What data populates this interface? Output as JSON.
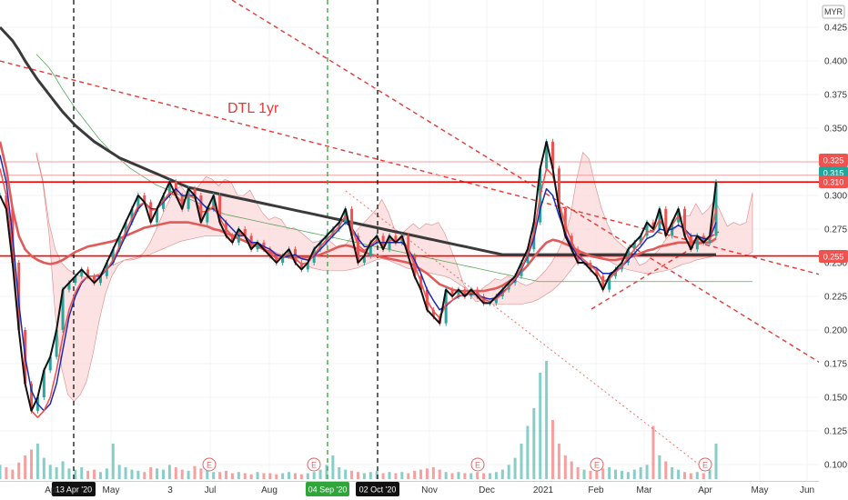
{
  "currency": "MYR",
  "annotation": "DTL 1yr",
  "colors": {
    "up": "#26a69a",
    "down": "#ef5350",
    "red_line": "#ff0000",
    "dashed_red": "#e53935",
    "long_ma": "#3a3a3a",
    "ma_red": "#e05a5a",
    "ma_blue": "#1a2bb0",
    "close_line": "#111111",
    "cloud_red": "#fbd6d6",
    "cloud_green": "#d3ecd3",
    "vline_black": "#111111",
    "vline_green": "#2fa53a"
  },
  "chart_data": {
    "type": "line",
    "x_axis_labels": [
      "Apr",
      "May",
      "Jul",
      "Aug",
      "Nov",
      "Dec",
      "2021",
      "Feb",
      "Mar",
      "Apr",
      "May",
      "Jun"
    ],
    "y_ticks": [
      0.1,
      0.125,
      0.15,
      0.175,
      0.2,
      0.225,
      0.25,
      0.275,
      0.3,
      0.325,
      0.35,
      0.375,
      0.4,
      0.425
    ],
    "extra_tick": "3",
    "ylim": [
      0.09,
      0.435
    ],
    "price_badges": [
      {
        "label": "0.325",
        "value": 0.325,
        "color": "#ef5350"
      },
      {
        "label": "0.315",
        "value": 0.315,
        "color": "#26a69a"
      },
      {
        "label": "0.310",
        "value": 0.31,
        "color": "#ef5350"
      },
      {
        "label": "0.255",
        "value": 0.255,
        "color": "#ef5350"
      }
    ],
    "horizontal_levels": [
      0.31,
      0.255
    ],
    "faint_levels": [
      0.325,
      0.315
    ],
    "event_lines": [
      {
        "label": "13 Apr '20",
        "style": "black"
      },
      {
        "label": "04 Sep '20",
        "style": "green"
      },
      {
        "label": "02 Oct '20",
        "style": "black"
      }
    ],
    "earnings_marker": "E",
    "close_series": [
      0.3,
      0.29,
      0.25,
      0.2,
      0.16,
      0.14,
      0.15,
      0.17,
      0.18,
      0.2,
      0.23,
      0.235,
      0.24,
      0.245,
      0.24,
      0.235,
      0.24,
      0.25,
      0.26,
      0.27,
      0.28,
      0.29,
      0.3,
      0.295,
      0.28,
      0.29,
      0.3,
      0.31,
      0.3,
      0.29,
      0.305,
      0.3,
      0.28,
      0.29,
      0.3,
      0.28,
      0.27,
      0.265,
      0.275,
      0.27,
      0.26,
      0.265,
      0.26,
      0.255,
      0.25,
      0.255,
      0.26,
      0.25,
      0.245,
      0.25,
      0.26,
      0.265,
      0.27,
      0.275,
      0.28,
      0.29,
      0.27,
      0.25,
      0.255,
      0.265,
      0.27,
      0.26,
      0.27,
      0.265,
      0.27,
      0.255,
      0.24,
      0.23,
      0.215,
      0.21,
      0.205,
      0.23,
      0.225,
      0.23,
      0.225,
      0.23,
      0.225,
      0.22,
      0.22,
      0.225,
      0.23,
      0.235,
      0.24,
      0.25,
      0.26,
      0.28,
      0.32,
      0.34,
      0.32,
      0.29,
      0.27,
      0.26,
      0.25,
      0.25,
      0.245,
      0.24,
      0.23,
      0.24,
      0.245,
      0.25,
      0.26,
      0.265,
      0.27,
      0.28,
      0.275,
      0.29,
      0.27,
      0.28,
      0.29,
      0.27,
      0.26,
      0.27,
      0.265,
      0.27,
      0.31
    ],
    "blue_ma": [
      0.33,
      0.31,
      0.27,
      0.22,
      0.18,
      0.155,
      0.145,
      0.14,
      0.145,
      0.16,
      0.185,
      0.21,
      0.225,
      0.235,
      0.24,
      0.24,
      0.24,
      0.245,
      0.25,
      0.26,
      0.27,
      0.28,
      0.29,
      0.295,
      0.29,
      0.29,
      0.295,
      0.3,
      0.305,
      0.3,
      0.3,
      0.3,
      0.295,
      0.29,
      0.29,
      0.285,
      0.28,
      0.275,
      0.27,
      0.27,
      0.265,
      0.265,
      0.262,
      0.26,
      0.256,
      0.254,
      0.255,
      0.256,
      0.253,
      0.252,
      0.255,
      0.26,
      0.265,
      0.27,
      0.275,
      0.28,
      0.276,
      0.268,
      0.262,
      0.262,
      0.265,
      0.265,
      0.265,
      0.265,
      0.265,
      0.26,
      0.252,
      0.242,
      0.23,
      0.222,
      0.215,
      0.218,
      0.222,
      0.225,
      0.226,
      0.227,
      0.226,
      0.224,
      0.223,
      0.224,
      0.228,
      0.232,
      0.237,
      0.245,
      0.255,
      0.268,
      0.29,
      0.305,
      0.3,
      0.285,
      0.272,
      0.262,
      0.255,
      0.25,
      0.248,
      0.246,
      0.242,
      0.242,
      0.244,
      0.247,
      0.252,
      0.257,
      0.262,
      0.268,
      0.27,
      0.275,
      0.274,
      0.275,
      0.278,
      0.275,
      0.27,
      0.27,
      0.268,
      0.268,
      0.28
    ],
    "red_ma_short": [
      0.32,
      0.3,
      0.26,
      0.2,
      0.16,
      0.14,
      0.135,
      0.14,
      0.15,
      0.17,
      0.195,
      0.215,
      0.228,
      0.236,
      0.24,
      0.24,
      0.241,
      0.245,
      0.252,
      0.262,
      0.273,
      0.283,
      0.292,
      0.295,
      0.289,
      0.29,
      0.296,
      0.302,
      0.3,
      0.295,
      0.3,
      0.298,
      0.288,
      0.288,
      0.292,
      0.283,
      0.275,
      0.27,
      0.272,
      0.27,
      0.263,
      0.264,
      0.261,
      0.257,
      0.253,
      0.254,
      0.257,
      0.253,
      0.249,
      0.25,
      0.256,
      0.262,
      0.267,
      0.272,
      0.277,
      0.285,
      0.276,
      0.263,
      0.259,
      0.263,
      0.267,
      0.263,
      0.267,
      0.266,
      0.268,
      0.26,
      0.248,
      0.236,
      0.222,
      0.214,
      0.209,
      0.219,
      0.222,
      0.226,
      0.225,
      0.228,
      0.226,
      0.223,
      0.221,
      0.223,
      0.227,
      0.232,
      0.238,
      0.246,
      0.256,
      0.272,
      0.3,
      0.32,
      0.315,
      0.295,
      0.278,
      0.266,
      0.256,
      0.252,
      0.248,
      0.244,
      0.236,
      0.238,
      0.243,
      0.247,
      0.254,
      0.26,
      0.265,
      0.273,
      0.273,
      0.282,
      0.274,
      0.278,
      0.285,
      0.275,
      0.265,
      0.268,
      0.266,
      0.268,
      0.29
    ],
    "red_ma_long": [
      0.34,
      0.32,
      0.29,
      0.27,
      0.26,
      0.255,
      0.252,
      0.25,
      0.249,
      0.25,
      0.252,
      0.255,
      0.258,
      0.26,
      0.262,
      0.263,
      0.264,
      0.265,
      0.266,
      0.268,
      0.27,
      0.272,
      0.274,
      0.276,
      0.277,
      0.278,
      0.279,
      0.28,
      0.28,
      0.28,
      0.28,
      0.279,
      0.278,
      0.277,
      0.275,
      0.274,
      0.272,
      0.27,
      0.268,
      0.266,
      0.264,
      0.262,
      0.26,
      0.258,
      0.256,
      0.255,
      0.254,
      0.254,
      0.254,
      0.254,
      0.255,
      0.256,
      0.258,
      0.26,
      0.262,
      0.263,
      0.262,
      0.26,
      0.258,
      0.256,
      0.255,
      0.254,
      0.253,
      0.252,
      0.251,
      0.25,
      0.248,
      0.245,
      0.242,
      0.238,
      0.234,
      0.232,
      0.23,
      0.229,
      0.229,
      0.229,
      0.229,
      0.229,
      0.23,
      0.231,
      0.233,
      0.236,
      0.239,
      0.243,
      0.248,
      0.254,
      0.26,
      0.265,
      0.267,
      0.266,
      0.264,
      0.262,
      0.259,
      0.257,
      0.255,
      0.254,
      0.253,
      0.252,
      0.252,
      0.253,
      0.254,
      0.255,
      0.257,
      0.259,
      0.26,
      0.262,
      0.263,
      0.264,
      0.265,
      0.265,
      0.265,
      0.265,
      0.265,
      0.265,
      0.268
    ],
    "long_ma": [
      0.425,
      0.42,
      0.415,
      0.408,
      0.4,
      0.393,
      0.386,
      0.38,
      0.374,
      0.368,
      0.362,
      0.357,
      0.352,
      0.348,
      0.344,
      0.34,
      0.337,
      0.334,
      0.331,
      0.328,
      0.326,
      0.324,
      0.322,
      0.32,
      0.318,
      0.316,
      0.314,
      0.312,
      0.31,
      0.308,
      0.306,
      0.305,
      0.304,
      0.303,
      0.302,
      0.301,
      0.3,
      0.299,
      0.298,
      0.297,
      0.296,
      0.295,
      0.294,
      0.293,
      0.292,
      0.291,
      0.29,
      0.289,
      0.288,
      0.287,
      0.286,
      0.285,
      0.284,
      0.283,
      0.282,
      0.281,
      0.28,
      0.279,
      0.278,
      0.277,
      0.276,
      0.275,
      0.274,
      0.273,
      0.272,
      0.271,
      0.27,
      0.269,
      0.268,
      0.267,
      0.266,
      0.265,
      0.264,
      0.263,
      0.262,
      0.261,
      0.26,
      0.259,
      0.258,
      0.257,
      0.256,
      0.256,
      0.256,
      0.256,
      0.256,
      0.256,
      0.256,
      0.256,
      0.256,
      0.256,
      0.256,
      0.256,
      0.256,
      0.256,
      0.256,
      0.256,
      0.256,
      0.256,
      0.256,
      0.256,
      0.256,
      0.256,
      0.256,
      0.256,
      0.256,
      0.256,
      0.256,
      0.256,
      0.256,
      0.256,
      0.256,
      0.256,
      0.256,
      0.256,
      0.256
    ],
    "volume_ticks_note": "",
    "volumes": [
      0.12,
      0.1,
      0.08,
      0.14,
      0.2,
      0.25,
      0.3,
      0.18,
      0.12,
      0.1,
      0.15,
      0.09,
      0.08,
      0.1,
      0.07,
      0.08,
      0.06,
      0.09,
      0.3,
      0.12,
      0.1,
      0.08,
      0.07,
      0.06,
      0.1,
      0.09,
      0.08,
      0.12,
      0.1,
      0.08,
      0.07,
      0.11,
      0.09,
      0.08,
      0.06,
      0.06,
      0.07,
      0.05,
      0.06,
      0.05,
      0.04,
      0.06,
      0.05,
      0.05,
      0.04,
      0.05,
      0.06,
      0.05,
      0.04,
      0.05,
      0.06,
      0.08,
      0.12,
      0.2,
      0.1,
      0.08,
      0.07,
      0.06,
      0.05,
      0.06,
      0.07,
      0.05,
      0.06,
      0.05,
      0.06,
      0.05,
      0.07,
      0.08,
      0.09,
      0.1,
      0.08,
      0.06,
      0.05,
      0.06,
      0.05,
      0.05,
      0.06,
      0.05,
      0.05,
      0.06,
      0.08,
      0.12,
      0.18,
      0.3,
      0.45,
      0.6,
      0.9,
      1.0,
      0.5,
      0.3,
      0.2,
      0.15,
      0.1,
      0.08,
      0.07,
      0.08,
      0.09,
      0.1,
      0.08,
      0.07,
      0.06,
      0.08,
      0.1,
      0.12,
      0.45,
      0.2,
      0.15,
      0.1,
      0.08,
      0.06,
      0.05,
      0.06,
      0.05,
      0.08,
      0.3
    ]
  }
}
